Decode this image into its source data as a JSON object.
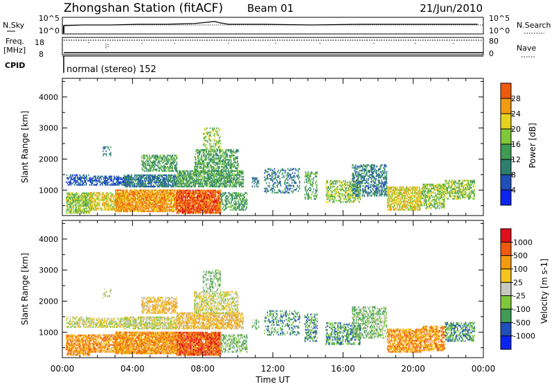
{
  "header": {
    "station": "Zhongshan Station (fitACF)",
    "beam": "Beam 01",
    "date": "21/Jun/2010"
  },
  "top_panels": {
    "nsky_label": "N.Sky",
    "nsky_ticks": [
      "10^5",
      "10^0"
    ],
    "nsearch_label": "N.Search",
    "nsearch_ticks": [
      "10^5",
      "10^0"
    ],
    "freq_label": "Freq.",
    "freq_unit": "[MHz]",
    "freq_ticks": [
      "18",
      "8"
    ],
    "nave_label": "Nave",
    "nave_ticks": [
      "80",
      "0"
    ],
    "cpid_label": "CPID",
    "cpid_text": "normal (stereo) 152"
  },
  "colors": {
    "power": [
      "#0a24f0",
      "#1f4fb8",
      "#2c7f6f",
      "#3f9a55",
      "#7fc83a",
      "#e6d21e",
      "#f29a10",
      "#ee5a0e",
      "#e0101a"
    ],
    "velocity": [
      "#e0101a",
      "#ee5a0e",
      "#f29a10",
      "#f4c51e",
      "#c8c8c0",
      "#7fc83a",
      "#3f9a55",
      "#1f4fb8",
      "#0a24f0"
    ]
  },
  "chart_data": [
    {
      "type": "heatmap",
      "quantity": "Power",
      "ylabel": "Slant Range [km]",
      "yticks": [
        1000,
        2000,
        3000,
        4000
      ],
      "ylim": [
        180,
        4600
      ],
      "xlim_hours": [
        0,
        24
      ],
      "colorbar_label": "Power [dB]",
      "colorbar_ticks": [
        "4",
        "8",
        "12",
        "16",
        "20",
        "24",
        "28"
      ],
      "colorbar_range": [
        0,
        32
      ]
    },
    {
      "type": "heatmap",
      "quantity": "Velocity",
      "ylabel": "Slant Range [km]",
      "yticks": [
        1000,
        2000,
        3000,
        4000
      ],
      "ylim": [
        180,
        4600
      ],
      "xlim_hours": [
        0,
        24
      ],
      "xticklabels": [
        "00:00",
        "04:00",
        "08:00",
        "12:00",
        "16:00",
        "20:00",
        "00:00"
      ],
      "xlabel": "Time UT",
      "colorbar_label": "Velocity [m s-1]",
      "colorbar_ticks": [
        "1000",
        "500",
        "100",
        "25",
        "-25",
        "-100",
        "-500",
        "-1000"
      ]
    }
  ]
}
